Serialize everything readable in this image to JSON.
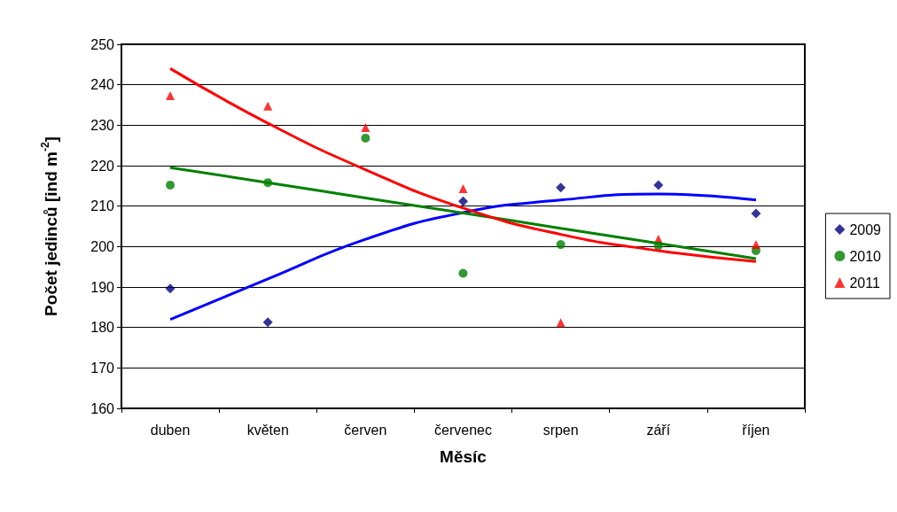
{
  "chart_data": {
    "type": "scatter",
    "xlabel": "Měsíc",
    "ylabel": "Počet jedinců [ind m$^{-2}$]",
    "categories": [
      "duben",
      "květen",
      "červen",
      "červenec",
      "srpen",
      "září",
      "říjen"
    ],
    "series": [
      {
        "name": "2009",
        "color": "#000080",
        "marker": "diamond",
        "values": [
          189.6,
          181.3,
          null,
          211.2,
          214.6,
          215.2,
          208.2
        ]
      },
      {
        "name": "2010",
        "color": "#008000",
        "marker": "circle",
        "values": [
          215.2,
          215.8,
          226.8,
          193.4,
          200.5,
          200.2,
          199.0
        ]
      },
      {
        "name": "2011",
        "color": "#ff0000",
        "marker": "triangle",
        "values": [
          237.3,
          234.7,
          229.4,
          214.3,
          181.2,
          201.8,
          200.5
        ]
      },
      {
        "type": "line",
        "color": "#0000ff",
        "marker": "none",
        "x": [
          "duben",
          "květen",
          "červen",
          "červenec",
          "srpen",
          "září",
          "říjen"
        ],
        "values": [
          182,
          192,
          201.8,
          208.4,
          211.5,
          213,
          211.5
        ]
      },
      {
        "type": "line",
        "color": "#008000",
        "marker": "none",
        "x": [
          "duben",
          "květen",
          "červen",
          "červenec",
          "srpen",
          "září",
          "říjen"
        ],
        "values": [
          219.5,
          215.8,
          212,
          208.3,
          204.5,
          200.8,
          197
        ]
      },
      {
        "type": "line",
        "color": "#ff0000",
        "marker": "none",
        "x": [
          "duben",
          "květen",
          "červen",
          "červenec",
          "srpen",
          "září",
          "říjen"
        ],
        "values": [
          244,
          230.5,
          219,
          209.5,
          203,
          199,
          196.3
        ]
      }
    ],
    "ylim": [
      160,
      250
    ],
    "yticks": [
      160,
      170,
      180,
      190,
      200,
      210,
      220,
      230,
      240,
      250
    ],
    "grid": "y",
    "legend": "right"
  }
}
